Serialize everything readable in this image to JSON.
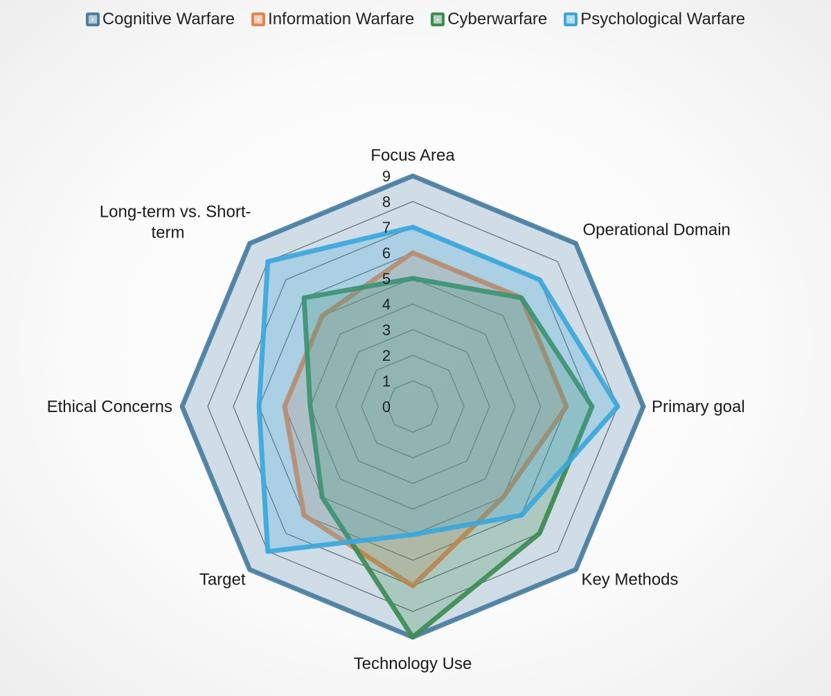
{
  "chart_data": {
    "type": "radar",
    "categories": [
      "Focus Area",
      "Operational Domain",
      "Primary goal",
      "Key Methods",
      "Technology Use",
      "Target",
      "Ethical Concerns",
      "Long-term vs. Short-term"
    ],
    "rlim": [
      0,
      9
    ],
    "ticks": [
      "0",
      "1",
      "2",
      "3",
      "4",
      "5",
      "6",
      "7",
      "8",
      "9"
    ],
    "grid": true,
    "legend_position": "top",
    "series": [
      {
        "name": "Cognitive Warfare",
        "color": "#4a7fa3",
        "values": [
          9,
          9,
          9,
          9,
          9,
          9,
          9,
          9
        ]
      },
      {
        "name": "Information Warfare",
        "color": "#e2864f",
        "values": [
          6,
          6,
          6,
          5,
          7,
          6,
          5,
          5
        ]
      },
      {
        "name": "Cyberwarfare",
        "color": "#3d8c52",
        "values": [
          5,
          6,
          7,
          7,
          9,
          5,
          4,
          6
        ]
      },
      {
        "name": "Psychological Warfare",
        "color": "#3ba7dc",
        "values": [
          7,
          7,
          8,
          6,
          5,
          8,
          6,
          8
        ]
      }
    ]
  }
}
